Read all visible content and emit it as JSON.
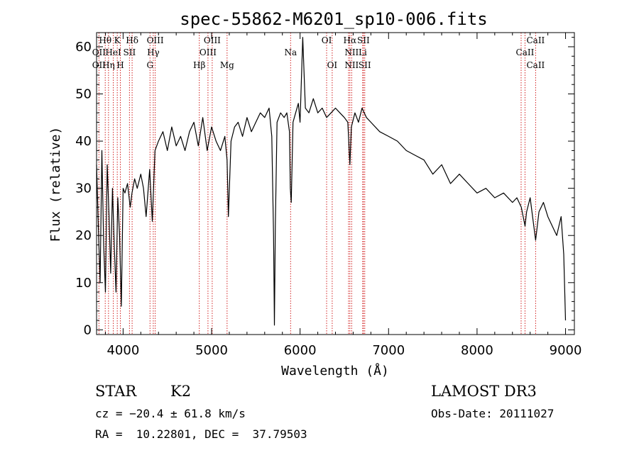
{
  "chart_data": {
    "type": "line",
    "title": "spec-55862-M6201_sp10-006.fits",
    "xlabel": "Wavelength (Å)",
    "ylabel": "Flux (relative)",
    "xlim": [
      3700,
      9100
    ],
    "ylim": [
      -1,
      63
    ],
    "xticks": [
      4000,
      5000,
      6000,
      7000,
      8000,
      9000
    ],
    "yticks": [
      0,
      10,
      20,
      30,
      40,
      50,
      60
    ],
    "series": [
      {
        "name": "flux",
        "x": [
          3700,
          3720,
          3740,
          3760,
          3780,
          3800,
          3820,
          3840,
          3860,
          3880,
          3900,
          3920,
          3940,
          3960,
          3980,
          4000,
          4020,
          4050,
          4080,
          4100,
          4130,
          4160,
          4200,
          4230,
          4260,
          4300,
          4330,
          4360,
          4400,
          4450,
          4500,
          4550,
          4600,
          4650,
          4700,
          4750,
          4800,
          4850,
          4900,
          4950,
          5000,
          5050,
          5100,
          5150,
          5175,
          5190,
          5220,
          5260,
          5300,
          5350,
          5400,
          5450,
          5500,
          5550,
          5600,
          5650,
          5680,
          5700,
          5710,
          5720,
          5740,
          5780,
          5820,
          5850,
          5880,
          5890,
          5900,
          5920,
          5950,
          5980,
          6000,
          6030,
          6060,
          6100,
          6150,
          6200,
          6250,
          6300,
          6350,
          6400,
          6450,
          6500,
          6540,
          6563,
          6580,
          6620,
          6660,
          6700,
          6750,
          6800,
          6900,
          7000,
          7100,
          7200,
          7300,
          7400,
          7500,
          7600,
          7700,
          7800,
          7900,
          8000,
          8100,
          8200,
          8300,
          8400,
          8450,
          8500,
          8542,
          8560,
          8600,
          8662,
          8700,
          8750,
          8800,
          8850,
          8900,
          8950,
          8980,
          9000
        ],
        "values": [
          35,
          22,
          10,
          38,
          18,
          8,
          35,
          25,
          12,
          30,
          18,
          8,
          28,
          20,
          5,
          30,
          29,
          31,
          26,
          29,
          32,
          30,
          33,
          30,
          24,
          34,
          23,
          38,
          40,
          42,
          38,
          43,
          39,
          41,
          38,
          42,
          44,
          39,
          45,
          38,
          43,
          40,
          38,
          41,
          36,
          24,
          40,
          43,
          44,
          41,
          45,
          42,
          44,
          46,
          45,
          47,
          41,
          20,
          1,
          22,
          44,
          46,
          45,
          46,
          42,
          30,
          27,
          44,
          46,
          48,
          44,
          62,
          47,
          46,
          49,
          46,
          47,
          45,
          46,
          47,
          46,
          45,
          44,
          35,
          43,
          46,
          44,
          47,
          45,
          44,
          42,
          41,
          40,
          38,
          37,
          36,
          33,
          35,
          31,
          33,
          31,
          29,
          30,
          28,
          29,
          27,
          28,
          26,
          22,
          25,
          28,
          19,
          25,
          27,
          24,
          22,
          20,
          24,
          16,
          2
        ]
      }
    ],
    "lines": [
      {
        "name": "OII",
        "x": 3727,
        "color": "#d22222"
      },
      {
        "name": "Hθ",
        "x": 3798,
        "color": "#d22222"
      },
      {
        "name": "Hη",
        "x": 3835,
        "color": "#d22222"
      },
      {
        "name": "HeI",
        "x": 3889,
        "color": "#d22222"
      },
      {
        "name": "K",
        "x": 3934,
        "color": "#d22222"
      },
      {
        "name": "H",
        "x": 3969,
        "color": "#d22222"
      },
      {
        "name": "SII",
        "x": 4072,
        "color": "#d22222"
      },
      {
        "name": "Hδ",
        "x": 4102,
        "color": "#d22222"
      },
      {
        "name": "G",
        "x": 4304,
        "color": "#d22222"
      },
      {
        "name": "Hγ",
        "x": 4341,
        "color": "#d22222"
      },
      {
        "name": "OIII",
        "x": 4363,
        "color": "#d22222"
      },
      {
        "name": "Hβ",
        "x": 4861,
        "color": "#d22222"
      },
      {
        "name": "OIII",
        "x": 4959,
        "color": "#d22222"
      },
      {
        "name": "OIII",
        "x": 5007,
        "color": "#d22222"
      },
      {
        "name": "Mg",
        "x": 5175,
        "color": "#d22222"
      },
      {
        "name": "Na",
        "x": 5893,
        "color": "#d22222"
      },
      {
        "name": "OI",
        "x": 6300,
        "color": "#d22222"
      },
      {
        "name": "OI",
        "x": 6363,
        "color": "#d22222"
      },
      {
        "name": "NII",
        "x": 6548,
        "color": "#d22222"
      },
      {
        "name": "Hα",
        "x": 6563,
        "color": "#d22222"
      },
      {
        "name": "NII",
        "x": 6583,
        "color": "#d22222"
      },
      {
        "name": "Li",
        "x": 6708,
        "color": "#d22222"
      },
      {
        "name": "SII",
        "x": 6716,
        "color": "#d22222"
      },
      {
        "name": "SII",
        "x": 6731,
        "color": "#d22222"
      },
      {
        "name": "CaII",
        "x": 8498,
        "color": "#d22222"
      },
      {
        "name": "CaII",
        "x": 8542,
        "color": "#d22222"
      },
      {
        "name": "CaII",
        "x": 8662,
        "color": "#d22222"
      }
    ],
    "line_labels": [
      {
        "row": 1,
        "text": "Hθ",
        "x": 3798
      },
      {
        "row": 1,
        "text": "K",
        "x": 3934
      },
      {
        "row": 1,
        "text": "Hδ",
        "x": 4102
      },
      {
        "row": 1,
        "text": "OIII",
        "x": 4363
      },
      {
        "row": 1,
        "text": "OIII",
        "x": 5007
      },
      {
        "row": 1,
        "text": "OI",
        "x": 6300
      },
      {
        "row": 1,
        "text": "Hα",
        "x": 6563
      },
      {
        "row": 1,
        "text": "SII",
        "x": 6716
      },
      {
        "row": 1,
        "text": "CaII",
        "x": 8662
      },
      {
        "row": 2,
        "text": "OII",
        "x": 3727
      },
      {
        "row": 2,
        "text": "HeI",
        "x": 3889
      },
      {
        "row": 2,
        "text": "SII",
        "x": 4072
      },
      {
        "row": 2,
        "text": "Hγ",
        "x": 4341
      },
      {
        "row": 2,
        "text": "OIII",
        "x": 4959
      },
      {
        "row": 2,
        "text": "Na",
        "x": 5893
      },
      {
        "row": 2,
        "text": "NII",
        "x": 6583
      },
      {
        "row": 2,
        "text": "Li",
        "x": 6708
      },
      {
        "row": 2,
        "text": "CaII",
        "x": 8542
      },
      {
        "row": 3,
        "text": "OII",
        "x": 3727
      },
      {
        "row": 3,
        "text": "Hη",
        "x": 3835
      },
      {
        "row": 3,
        "text": "H",
        "x": 3969
      },
      {
        "row": 3,
        "text": "G",
        "x": 4304
      },
      {
        "row": 3,
        "text": "Hβ",
        "x": 4861
      },
      {
        "row": 3,
        "text": "Mg",
        "x": 5175
      },
      {
        "row": 3,
        "text": "OI",
        "x": 6363
      },
      {
        "row": 3,
        "text": "NII",
        "x": 6583
      },
      {
        "row": 3,
        "text": "SII",
        "x": 6731
      },
      {
        "row": 3,
        "text": "CaII",
        "x": 8662
      }
    ]
  },
  "info": {
    "object_class": "STAR",
    "subclass": "K2",
    "survey": "LAMOST DR3",
    "cz": "cz = −20.4 ± 61.8 km/s",
    "obs_date": "Obs-Date: 20111027",
    "coords": "RA =  10.22801, DEC =  37.79503"
  }
}
